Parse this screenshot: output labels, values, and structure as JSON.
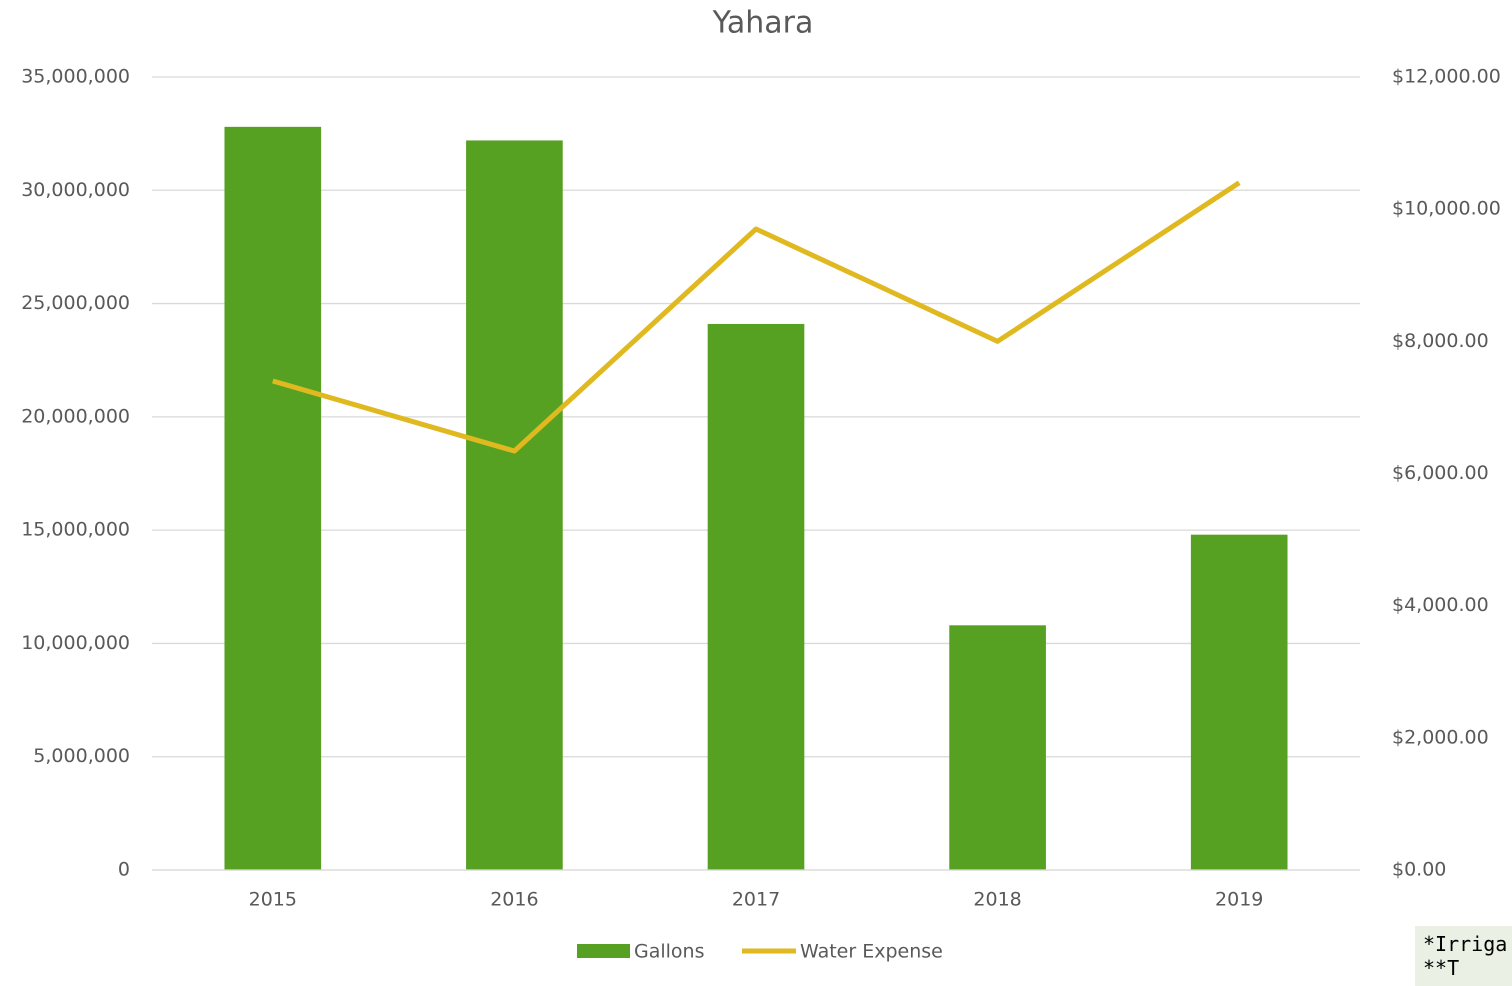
{
  "chart_data": {
    "type": "bar",
    "title": "Yahara",
    "categories": [
      "2015",
      "2016",
      "2017",
      "2018",
      "2019"
    ],
    "series": [
      {
        "name": "Gallons",
        "type": "bar",
        "color": "#56a121",
        "values": [
          32800000,
          32200000,
          24100000,
          10800000,
          14800000
        ]
      },
      {
        "name": "Water Expense",
        "type": "line",
        "axis": "y2",
        "color": "#e0b921",
        "values": [
          7400,
          6340,
          9700,
          8000,
          10400
        ]
      }
    ],
    "ylim": [
      0,
      35000000
    ],
    "yticks": [
      0,
      {
        "value": 5000000,
        "label": "5,000,000"
      },
      {
        "value": 10000000,
        "label": "10,000,000"
      },
      {
        "value": 15000000,
        "label": "15,000,000"
      },
      {
        "value": 20000000,
        "label": "20,000,000"
      },
      {
        "value": 25000000,
        "label": "25,000,000"
      },
      {
        "value": 30000000,
        "label": "30,000,000"
      },
      {
        "value": 35000000,
        "label": "35,000,000"
      }
    ],
    "y2lim": [
      0,
      12000
    ],
    "y2ticks": [
      {
        "value": 0,
        "label": "$0.00"
      },
      {
        "value": 2000,
        "label": "$2,000.00"
      },
      {
        "value": 4000,
        "label": "$4,000.00"
      },
      {
        "value": 6000,
        "label": "$6,000.00"
      },
      {
        "value": 8000,
        "label": "$8,000.00"
      },
      {
        "value": 10000,
        "label": "$10,000.00"
      },
      {
        "value": 12000,
        "label": "$12,000.00"
      }
    ],
    "grid": true,
    "legend": "bottom",
    "annotations": [
      "*Irriga",
      "**T"
    ]
  }
}
